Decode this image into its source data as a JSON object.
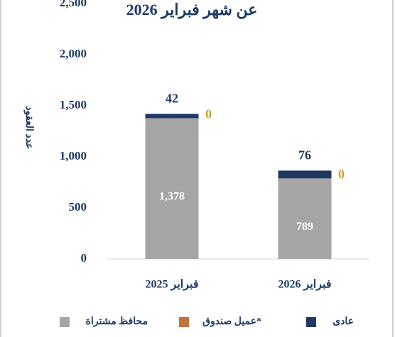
{
  "chart_data": {
    "type": "stacked_bar",
    "title": "عن شهر فبراير 2026",
    "y_label": "عدد العقود",
    "categories": [
      "فبراير 2025",
      "فبراير 2026"
    ],
    "series": [
      {
        "name": "محافظ مشتراة",
        "color": "#a5a5a5",
        "values": [
          1378,
          789
        ],
        "value_labels": [
          "1,378",
          "789"
        ]
      },
      {
        "name": "عميل صندوق*",
        "color": "#c0733a",
        "values": [
          0,
          0
        ]
      },
      {
        "name": "عادى",
        "color": "#1f3864",
        "values": [
          42,
          76
        ]
      }
    ],
    "ylim": [
      0,
      2500
    ],
    "yticks": [
      0,
      500,
      {
        "value": 1000,
        "label": "1,000"
      },
      {
        "value": 1500,
        "label": "1,500"
      },
      {
        "value": 2000,
        "label": "2,000"
      },
      {
        "value": 2500,
        "label": "2,500"
      }
    ],
    "legend": "bottom"
  }
}
